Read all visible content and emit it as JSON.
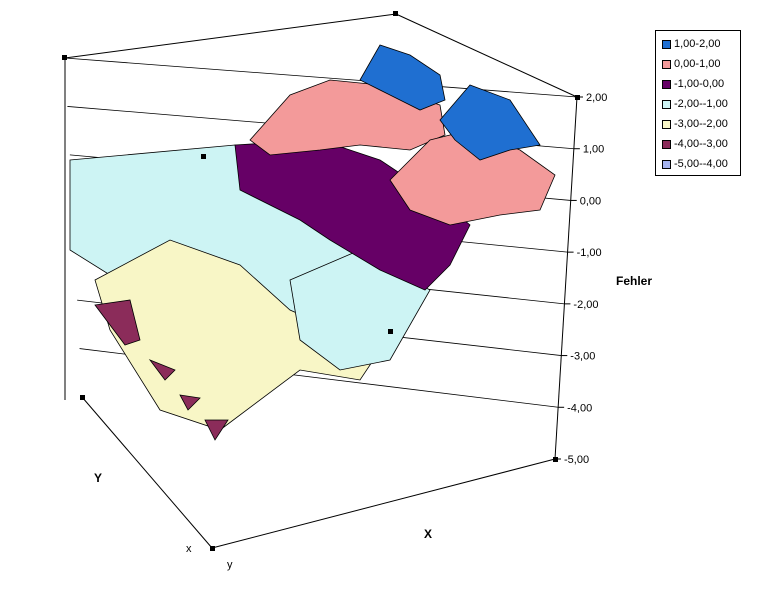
{
  "chart_data": {
    "type": "surface",
    "z_axis": {
      "title": "Fehler",
      "range": [
        -5,
        2
      ],
      "ticks": [
        "-5,00",
        "-4,00",
        "-3,00",
        "-2,00",
        "-1,00",
        "0,00",
        "1,00",
        "2,00"
      ]
    },
    "x_axis": {
      "title": "X",
      "tick_labels": [
        "y"
      ]
    },
    "y_axis": {
      "title": "Y",
      "tick_labels": [
        "x"
      ]
    },
    "legend": {
      "position": "top-right",
      "entries": [
        {
          "label": "1,00-2,00",
          "color": "#1f6fd1"
        },
        {
          "label": "0,00-1,00",
          "color": "#f39a9a"
        },
        {
          "label": "-1,00-0,00",
          "color": "#660066"
        },
        {
          "label": "-2,00--1,00",
          "color": "#cdf4f4"
        },
        {
          "label": "-3,00--2,00",
          "color": "#f8f6c6"
        },
        {
          "label": "-4,00--3,00",
          "color": "#8b2c5a"
        },
        {
          "label": "-5,00--4,00",
          "color": "#a6b4f0"
        }
      ]
    },
    "grid": true
  }
}
